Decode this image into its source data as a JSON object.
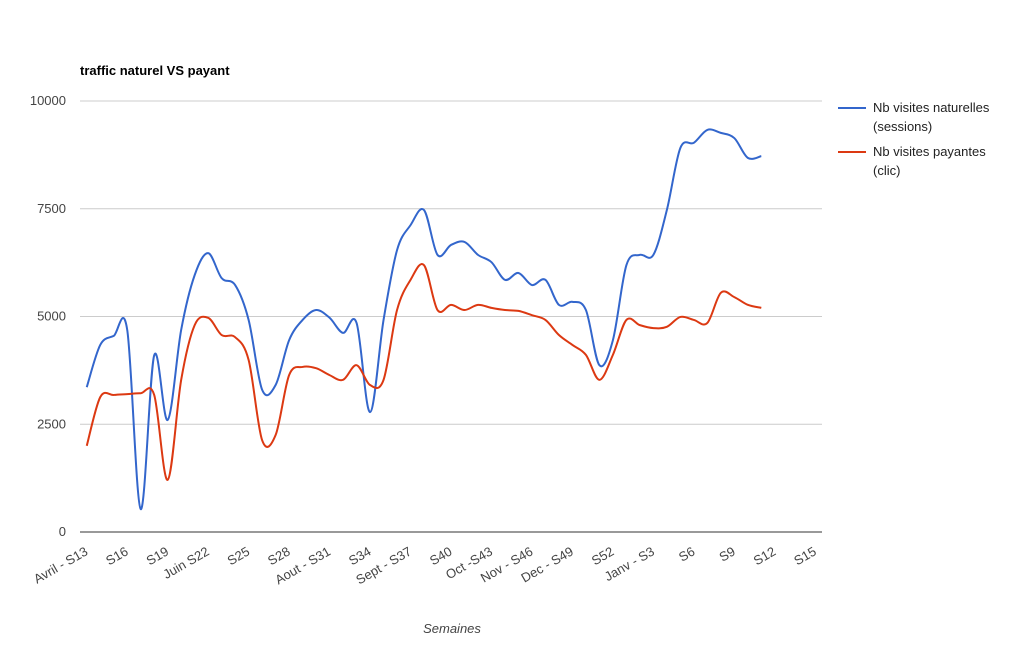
{
  "chart_data": {
    "type": "line",
    "title": "traffic naturel VS payant",
    "x_label": "Semaines",
    "categories": [
      "Avril - S13",
      null,
      null,
      "S16",
      null,
      null,
      "S19",
      null,
      null,
      "Juin S22",
      null,
      null,
      "S25",
      null,
      null,
      "S28",
      null,
      null,
      "Aout - S31",
      null,
      null,
      "S34",
      null,
      null,
      "Sept - S37",
      null,
      null,
      "S40",
      null,
      null,
      "Oct -S43",
      null,
      null,
      "Nov - S46",
      null,
      null,
      "Dec - S49",
      null,
      null,
      "S52",
      null,
      null,
      "Janv - S3",
      null,
      null,
      "S6",
      null,
      null,
      "S9",
      null,
      null,
      "S12",
      null,
      null,
      "S15"
    ],
    "series": [
      {
        "name": "Nb visites naturelles (sessions)",
        "color": "#3366cc",
        "values": [
          3360,
          4340,
          4550,
          4690,
          530,
          4100,
          2600,
          4690,
          5960,
          6470,
          5890,
          5730,
          4920,
          3300,
          3410,
          4450,
          4920,
          5150,
          4970,
          4620,
          4850,
          2780,
          4920,
          6540,
          7120,
          7470,
          6430,
          6660,
          6730,
          6430,
          6260,
          5850,
          6010,
          5730,
          5850,
          5270,
          5340,
          5150,
          3870,
          4450,
          6190,
          6430,
          6430,
          7470,
          8910,
          9030,
          9330,
          9260,
          9140,
          8680,
          8720,
          null,
          null,
          null,
          null
        ]
      },
      {
        "name": "Nb visites payantes (clic)",
        "color": "#dc3912",
        "values": [
          2000,
          3130,
          3180,
          3200,
          3220,
          3180,
          1210,
          3530,
          4800,
          4970,
          4570,
          4520,
          3990,
          2130,
          2250,
          3640,
          3830,
          3800,
          3640,
          3530,
          3870,
          3410,
          3530,
          5150,
          5850,
          6190,
          5150,
          5270,
          5150,
          5270,
          5200,
          5150,
          5130,
          5030,
          4920,
          4570,
          4340,
          4110,
          3530,
          4110,
          4920,
          4800,
          4730,
          4760,
          4990,
          4920,
          4850,
          5550,
          5450,
          5270,
          5200,
          null,
          null,
          null,
          null
        ]
      }
    ],
    "ylim": [
      0,
      10000
    ],
    "yticks": [
      0,
      2500,
      5000,
      7500,
      10000
    ],
    "grid": true,
    "legend": "right",
    "smooth": true
  }
}
